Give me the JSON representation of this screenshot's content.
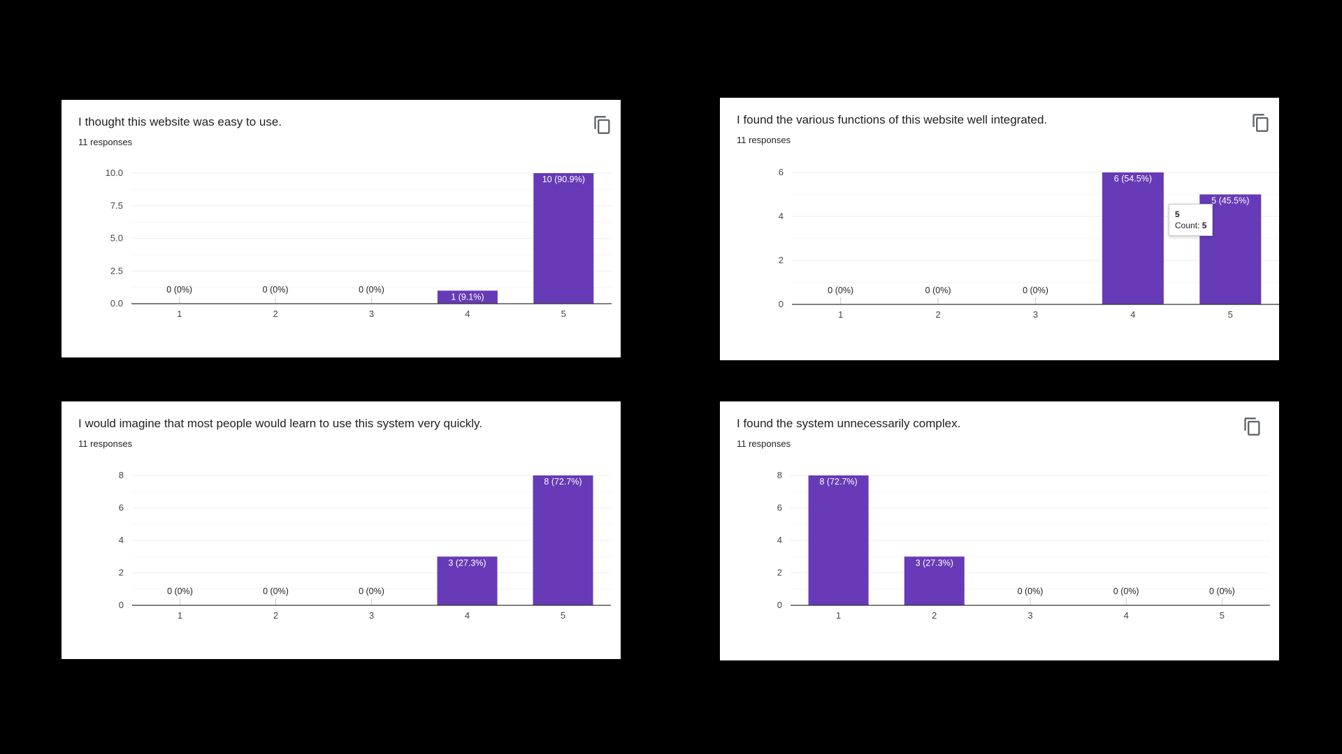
{
  "colors": {
    "bar": "#673ab7",
    "background": "#000000",
    "card": "#ffffff",
    "grid": "#eeeeee",
    "axis": "#333333"
  },
  "icons": {
    "copy": "copy-icon"
  },
  "cards": [
    {
      "title": "I thought this website was easy to use.",
      "responses": "11 responses",
      "show_copy": true
    },
    {
      "title": "I found the various functions of this website well integrated.",
      "responses": "11 responses",
      "show_copy": true
    },
    {
      "title": "I would imagine that most people would learn to use this system very quickly.",
      "responses": "11 responses",
      "show_copy": false
    },
    {
      "title": "I found the system unnecessarily complex.",
      "responses": "11 responses",
      "show_copy": true
    }
  ],
  "tooltip": {
    "title": "5",
    "count_label": "Count:",
    "count_value": "5"
  },
  "chart_data": [
    {
      "type": "bar",
      "title": "I thought this website was easy to use.",
      "categories": [
        "1",
        "2",
        "3",
        "4",
        "5"
      ],
      "values": [
        0,
        0,
        0,
        1,
        10
      ],
      "labels": [
        "0 (0%)",
        "0 (0%)",
        "0 (0%)",
        "1 (9.1%)",
        "10 (90.9%)"
      ],
      "yticks": [
        "0.0",
        "2.5",
        "5.0",
        "7.5",
        "10.0"
      ],
      "ylim": [
        0,
        10
      ],
      "grid": true,
      "legend": "none"
    },
    {
      "type": "bar",
      "title": "I found the various functions of this website well integrated.",
      "categories": [
        "1",
        "2",
        "3",
        "4",
        "5"
      ],
      "values": [
        0,
        0,
        0,
        6,
        5
      ],
      "labels": [
        "0 (0%)",
        "0 (0%)",
        "0 (0%)",
        "6 (54.5%)",
        "5 (45.5%)"
      ],
      "yticks": [
        "0",
        "2",
        "4",
        "6"
      ],
      "ylim": [
        0,
        6
      ],
      "grid": true,
      "legend": "none"
    },
    {
      "type": "bar",
      "title": "I would imagine that most people would learn to use this system very quickly.",
      "categories": [
        "1",
        "2",
        "3",
        "4",
        "5"
      ],
      "values": [
        0,
        0,
        0,
        3,
        8
      ],
      "labels": [
        "0 (0%)",
        "0 (0%)",
        "0 (0%)",
        "3 (27.3%)",
        "8 (72.7%)"
      ],
      "yticks": [
        "0",
        "2",
        "4",
        "6",
        "8"
      ],
      "ylim": [
        0,
        8
      ],
      "grid": true,
      "legend": "none"
    },
    {
      "type": "bar",
      "title": "I found the system unnecessarily complex.",
      "categories": [
        "1",
        "2",
        "3",
        "4",
        "5"
      ],
      "values": [
        8,
        3,
        0,
        0,
        0
      ],
      "labels": [
        "8 (72.7%)",
        "3 (27.3%)",
        "0 (0%)",
        "0 (0%)",
        "0 (0%)"
      ],
      "yticks": [
        "0",
        "2",
        "4",
        "6",
        "8"
      ],
      "ylim": [
        0,
        8
      ],
      "grid": true,
      "legend": "none"
    }
  ]
}
